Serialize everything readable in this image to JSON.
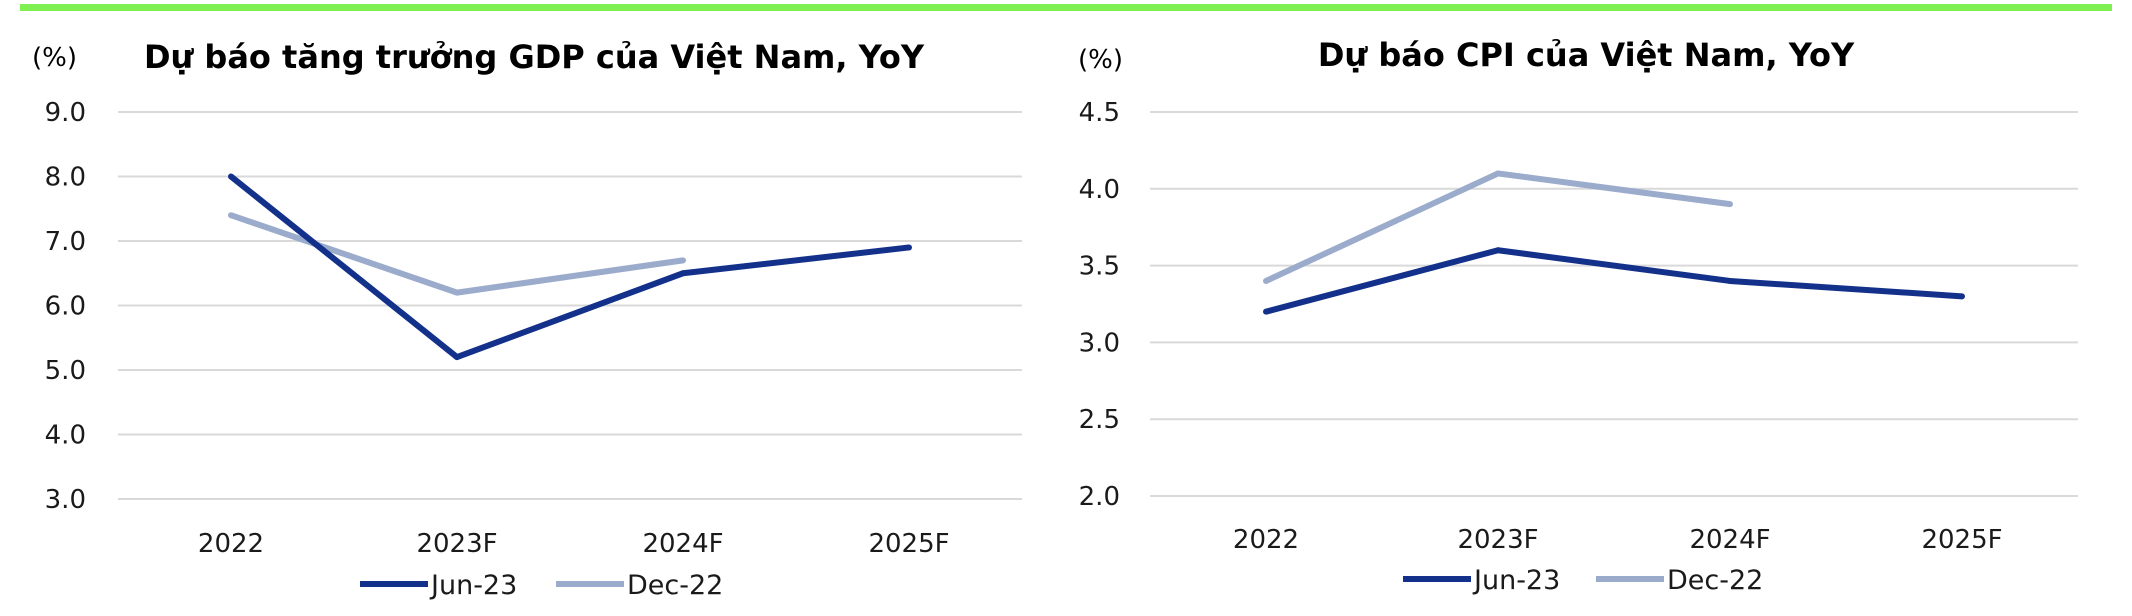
{
  "colors": {
    "top_bar": "#7ff052",
    "grid": "#d9d9d9",
    "jun23": "#13318a",
    "dec22": "#9aabcc"
  },
  "chart_data": [
    {
      "type": "line",
      "title": "Dự báo tăng trưởng GDP của Việt Nam, YoY",
      "unit": "(%)",
      "xlabel": "",
      "ylabel": "",
      "categories": [
        "2022",
        "2023F",
        "2024F",
        "2025F"
      ],
      "ylim": [
        3.0,
        9.0
      ],
      "yticks": [
        "9.0",
        "8.0",
        "7.0",
        "6.0",
        "5.0",
        "4.0",
        "3.0"
      ],
      "grid": true,
      "legend_position": "bottom",
      "series": [
        {
          "name": "Jun-23",
          "values": [
            8.0,
            5.2,
            6.5,
            6.9
          ]
        },
        {
          "name": "Dec-22",
          "values": [
            7.4,
            6.2,
            6.7,
            null
          ]
        }
      ]
    },
    {
      "type": "line",
      "title": "Dự báo CPI của Việt Nam, YoY",
      "unit": "(%)",
      "xlabel": "",
      "ylabel": "",
      "categories": [
        "2022",
        "2023F",
        "2024F",
        "2025F"
      ],
      "ylim": [
        2.0,
        4.5
      ],
      "yticks": [
        "4.5",
        "4.0",
        "3.5",
        "3.0",
        "2.5",
        "2.0"
      ],
      "grid": true,
      "legend_position": "bottom",
      "series": [
        {
          "name": "Jun-23",
          "values": [
            3.2,
            3.6,
            3.4,
            3.3
          ]
        },
        {
          "name": "Dec-22",
          "values": [
            3.4,
            4.1,
            3.9,
            null
          ]
        }
      ]
    }
  ]
}
